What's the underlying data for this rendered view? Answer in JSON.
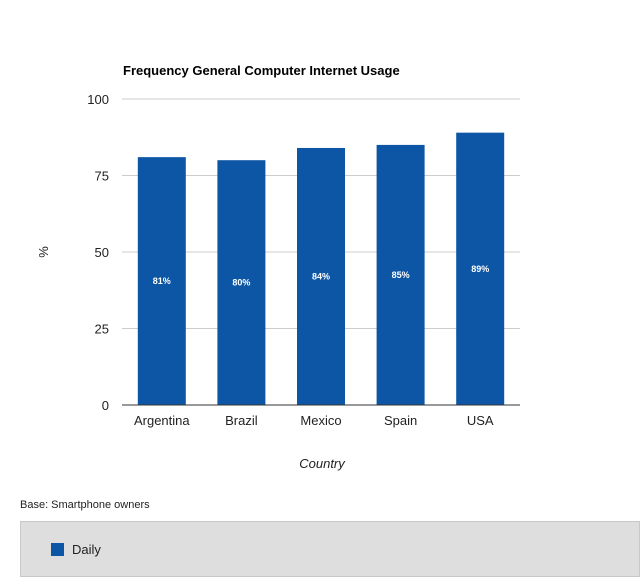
{
  "chart_data": {
    "type": "bar",
    "title": "Frequency General Computer Internet Usage",
    "xlabel": "Country",
    "ylabel": "%",
    "categories": [
      "Argentina",
      "Brazil",
      "Mexico",
      "Spain",
      "USA"
    ],
    "series": [
      {
        "name": "Daily",
        "values": [
          81,
          80,
          84,
          85,
          89
        ],
        "labels": [
          "81%",
          "80%",
          "84%",
          "85%",
          "89%"
        ],
        "color": "#0d56a6"
      }
    ],
    "ylim": [
      0,
      100
    ],
    "yticks": [
      0,
      25,
      50,
      75,
      100
    ],
    "grid": true,
    "legend": "bottom"
  },
  "footnote": "Base: Smartphone owners",
  "legend": {
    "label": "Daily"
  }
}
